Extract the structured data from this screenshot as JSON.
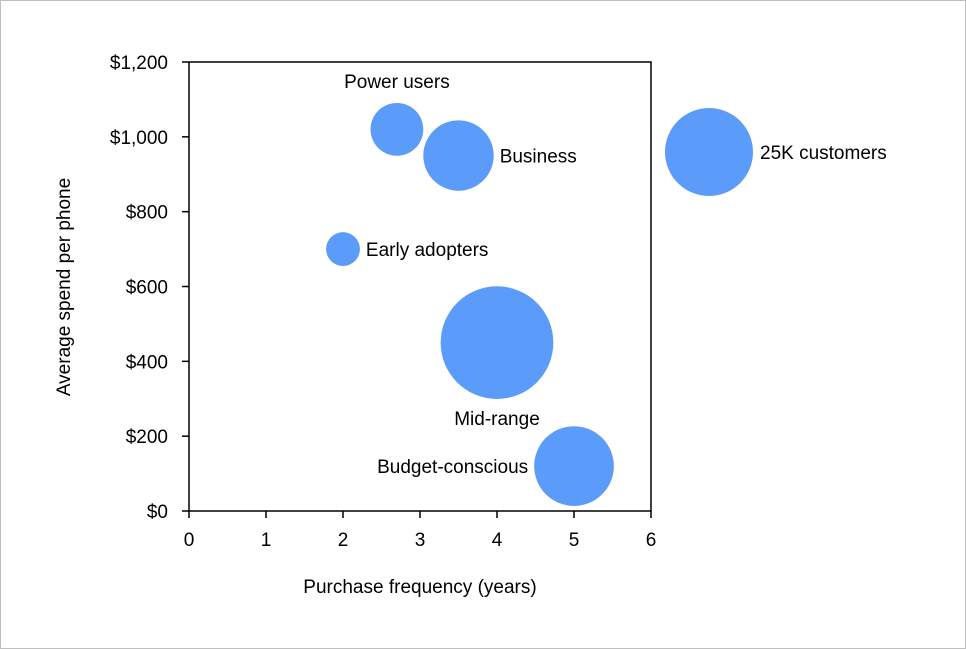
{
  "chart_data": {
    "type": "bubble",
    "title": "",
    "xlabel": "Purchase frequency (years)",
    "ylabel": "Average spend per phone",
    "xlim": [
      0,
      6
    ],
    "ylim": [
      0,
      1200
    ],
    "xticks": [
      "0",
      "1",
      "2",
      "3",
      "4",
      "5",
      "6"
    ],
    "yticks": [
      "$0",
      "$200",
      "$400",
      "$600",
      "$800",
      "$1,000",
      "$1,200"
    ],
    "grid": false,
    "bubble_color": "#5B9BFA",
    "size_unit": "thousand customers",
    "points": [
      {
        "label": "Power users",
        "x": 2.7,
        "y": 1020,
        "size": 9,
        "label_pos": "top"
      },
      {
        "label": "Business",
        "x": 3.5,
        "y": 950,
        "size": 16,
        "label_pos": "right"
      },
      {
        "label": "Early adopters",
        "x": 2.0,
        "y": 700,
        "size": 3.7,
        "label_pos": "right"
      },
      {
        "label": "Mid-range",
        "x": 4.0,
        "y": 450,
        "size": 41,
        "label_pos": "bottom"
      },
      {
        "label": "Budget-conscious",
        "x": 5.0,
        "y": 120,
        "size": 20.5,
        "label_pos": "left"
      }
    ],
    "size_legend": {
      "label": "25K customers",
      "size": 25
    }
  }
}
